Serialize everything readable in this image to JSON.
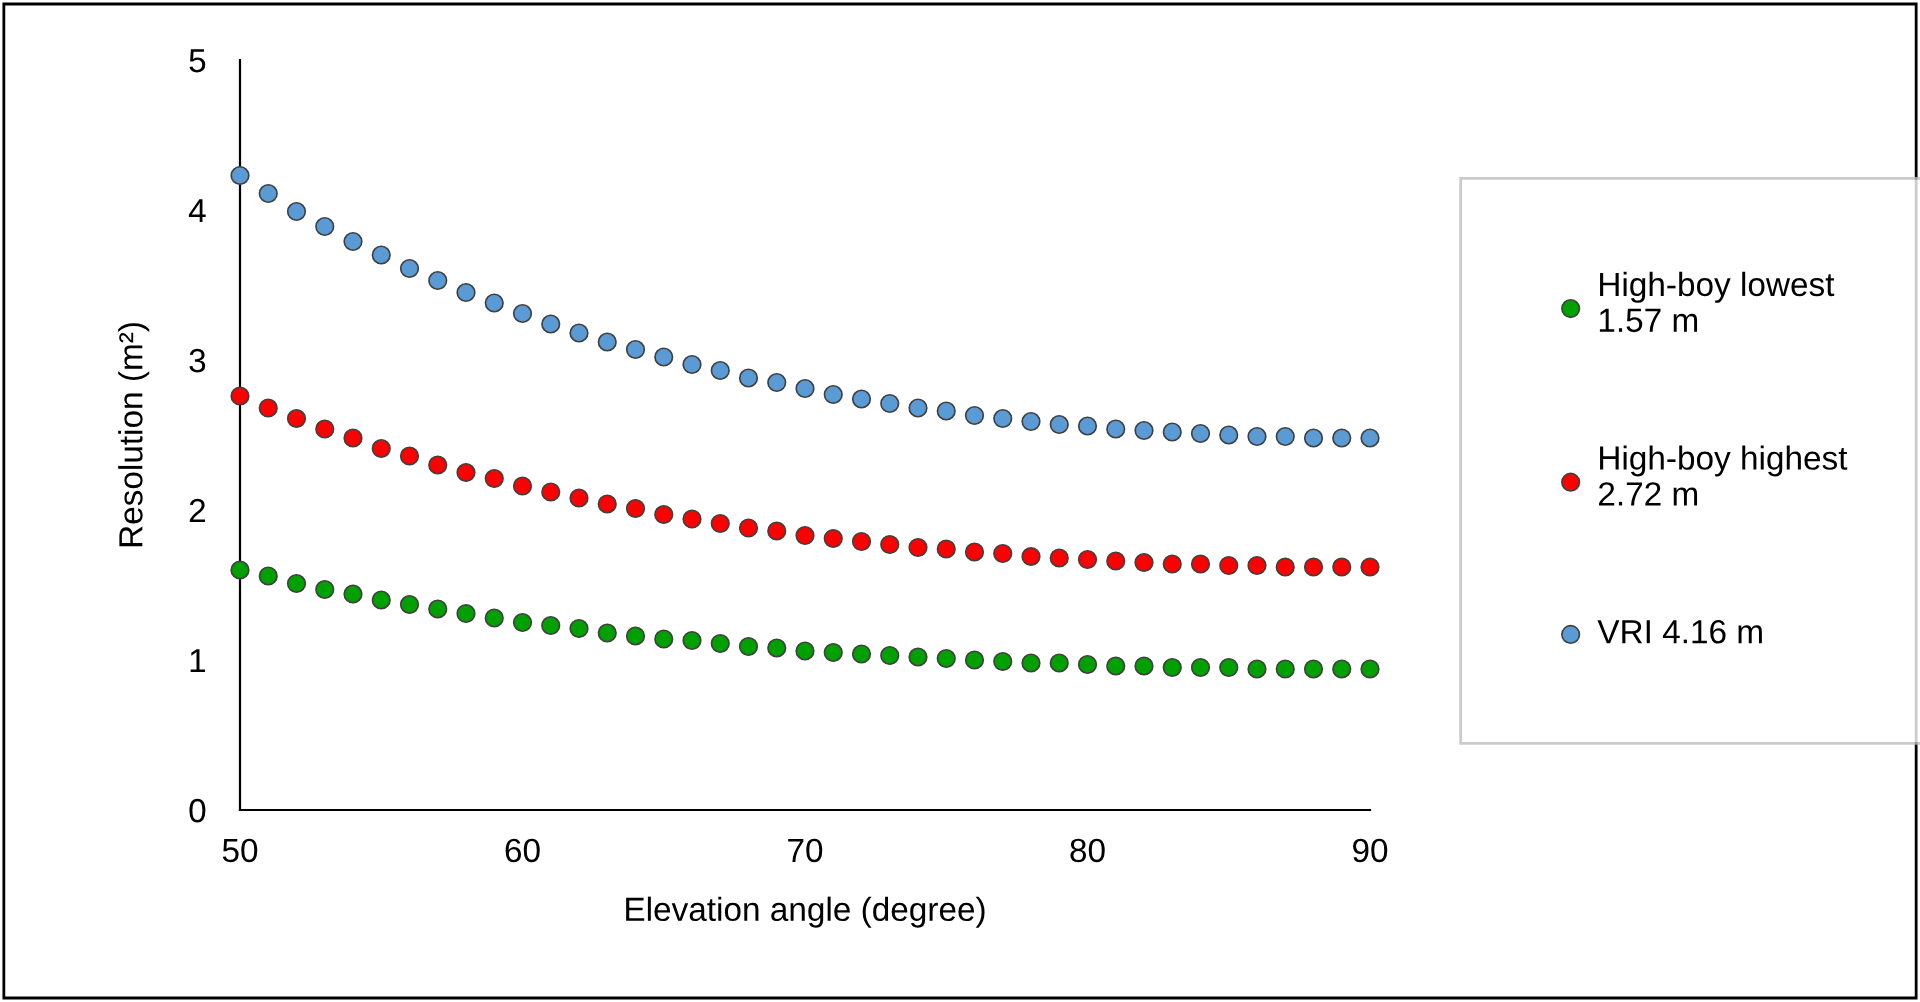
{
  "chart_data": {
    "type": "scatter",
    "xlabel": "Elevation angle (degree)",
    "ylabel": "Resolution (m²)",
    "x": [
      50,
      51,
      52,
      53,
      54,
      55,
      56,
      57,
      58,
      59,
      60,
      61,
      62,
      63,
      64,
      65,
      66,
      67,
      68,
      69,
      70,
      71,
      72,
      73,
      74,
      75,
      76,
      77,
      78,
      79,
      80,
      81,
      82,
      83,
      84,
      85,
      86,
      87,
      88,
      89,
      90
    ],
    "series": [
      {
        "name": "High-boy lowest\n1.57 m",
        "color": "#00a000",
        "values": [
          1.6,
          1.56,
          1.51,
          1.47,
          1.44,
          1.4,
          1.37,
          1.34,
          1.31,
          1.28,
          1.25,
          1.23,
          1.21,
          1.18,
          1.16,
          1.14,
          1.13,
          1.11,
          1.09,
          1.08,
          1.06,
          1.05,
          1.04,
          1.03,
          1.02,
          1.01,
          1.0,
          0.99,
          0.98,
          0.98,
          0.97,
          0.96,
          0.96,
          0.95,
          0.95,
          0.95,
          0.94,
          0.94,
          0.94,
          0.94,
          0.94
        ]
      },
      {
        "name": "High-boy highest\n2.72 m",
        "color": "#ff0000",
        "values": [
          2.76,
          2.68,
          2.61,
          2.54,
          2.48,
          2.41,
          2.36,
          2.3,
          2.25,
          2.21,
          2.16,
          2.12,
          2.08,
          2.04,
          2.01,
          1.97,
          1.94,
          1.91,
          1.88,
          1.86,
          1.83,
          1.81,
          1.79,
          1.77,
          1.75,
          1.74,
          1.72,
          1.71,
          1.69,
          1.68,
          1.67,
          1.66,
          1.65,
          1.64,
          1.64,
          1.63,
          1.63,
          1.62,
          1.62,
          1.62,
          1.62
        ]
      },
      {
        "name": "VRI 4.16 m",
        "color": "#5b9bd5",
        "values": [
          4.23,
          4.11,
          3.99,
          3.89,
          3.79,
          3.7,
          3.61,
          3.53,
          3.45,
          3.38,
          3.31,
          3.24,
          3.18,
          3.12,
          3.07,
          3.02,
          2.97,
          2.93,
          2.88,
          2.85,
          2.81,
          2.77,
          2.74,
          2.71,
          2.68,
          2.66,
          2.63,
          2.61,
          2.59,
          2.57,
          2.56,
          2.54,
          2.53,
          2.52,
          2.51,
          2.5,
          2.49,
          2.49,
          2.48,
          2.48,
          2.48
        ]
      }
    ],
    "xlim": [
      50,
      90
    ],
    "xticks": [
      50,
      60,
      70,
      80,
      90
    ],
    "ylim": [
      0,
      5
    ],
    "yticks": [
      0,
      1,
      2,
      3,
      4,
      5
    ],
    "marker": "circle",
    "legend": "right",
    "grid": false
  }
}
